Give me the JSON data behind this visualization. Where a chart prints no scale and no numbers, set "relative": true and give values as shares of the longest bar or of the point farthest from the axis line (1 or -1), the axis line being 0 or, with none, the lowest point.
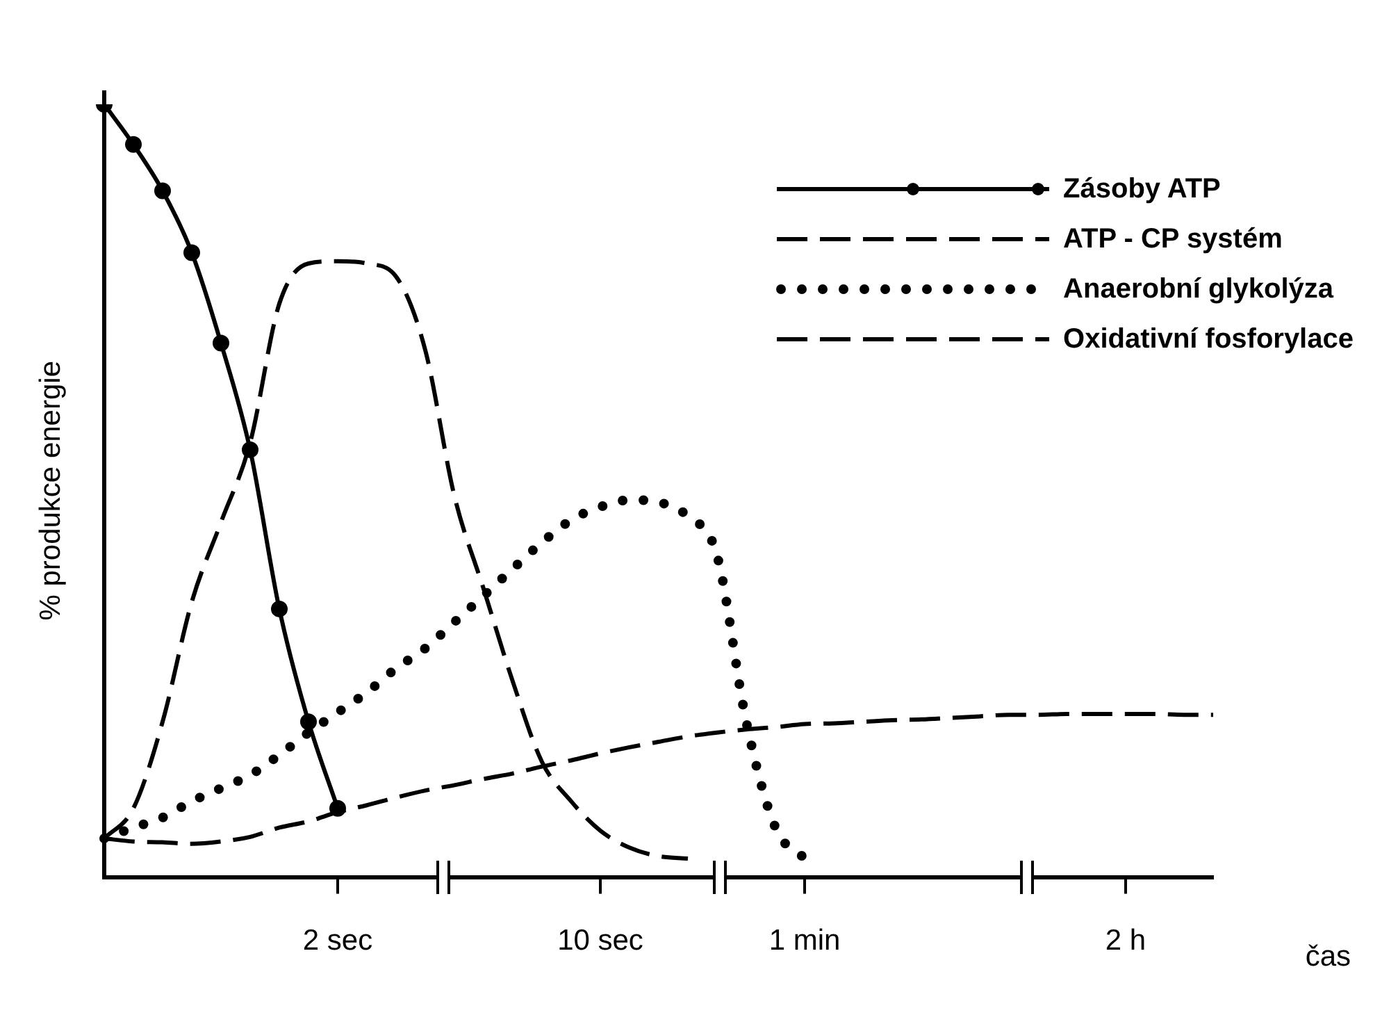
{
  "chart_data": {
    "type": "line",
    "relative": true,
    "ylabel": "% produkce energie",
    "xlabel": "čas",
    "legend": "top right",
    "categories": [
      null,
      null,
      null,
      null,
      null,
      null,
      null,
      null,
      "2 sec",
      null,
      null,
      null,
      null,
      null,
      null,
      null,
      null,
      "10 sec",
      null,
      null,
      null,
      null,
      null,
      null,
      "1 min",
      null,
      null,
      null,
      null,
      null,
      null,
      null,
      null,
      null,
      null,
      "2 h",
      null,
      null,
      null
    ],
    "series": [
      {
        "name": "Zásoby ATP",
        "color": "#000000",
        "line_style": "solid",
        "marker": "circle",
        "values": [
          1.0,
          0.948,
          0.888,
          0.808,
          0.691,
          0.553,
          0.347,
          0.201,
          0.089,
          null,
          null,
          null,
          null,
          null,
          null,
          null,
          null,
          null,
          null,
          null,
          null,
          null,
          null,
          null,
          null,
          null,
          null,
          null,
          null,
          null,
          null,
          null,
          null,
          null,
          null,
          null,
          null,
          null,
          null
        ]
      },
      {
        "name": "ATP - CP systém",
        "color": "#000000",
        "line_style": "dashed",
        "marker": "none",
        "values": [
          0.05,
          0.089,
          0.201,
          0.356,
          0.459,
          0.562,
          0.742,
          0.794,
          0.797,
          0.794,
          0.777,
          0.682,
          0.493,
          0.373,
          0.253,
          0.149,
          0.098,
          0.06,
          0.038,
          0.027,
          0.024,
          null,
          null,
          null,
          null,
          null,
          null,
          null,
          null,
          null,
          null,
          null,
          null,
          null,
          null,
          null,
          null,
          null,
          null
        ]
      },
      {
        "name": "Anaerobní glykolýza",
        "color": "#000000",
        "line_style": "dotted",
        "marker": "none",
        "values": [
          0.05,
          0.064,
          0.077,
          0.098,
          0.115,
          0.132,
          0.158,
          0.187,
          0.213,
          0.239,
          0.27,
          0.296,
          0.33,
          0.364,
          0.399,
          0.433,
          0.462,
          0.479,
          0.488,
          0.485,
          0.467,
          0.416,
          0.201,
          0.064,
          0.024,
          null,
          null,
          null,
          null,
          null,
          null,
          null,
          null,
          null,
          null,
          null,
          null,
          null,
          null
        ]
      },
      {
        "name": "Oxidativní fosforylace",
        "color": "#000000",
        "line_style": "dashed",
        "marker": "none",
        "values": [
          0.05,
          0.046,
          0.045,
          0.043,
          0.046,
          0.052,
          0.064,
          0.072,
          0.084,
          0.093,
          0.103,
          0.112,
          0.119,
          0.127,
          0.134,
          0.143,
          0.151,
          0.16,
          0.168,
          0.175,
          0.182,
          0.187,
          0.191,
          0.194,
          0.198,
          0.199,
          0.201,
          0.203,
          0.204,
          0.206,
          0.208,
          0.21,
          0.21,
          0.211,
          0.211,
          0.211,
          0.211,
          0.21,
          0.21
        ]
      }
    ]
  }
}
